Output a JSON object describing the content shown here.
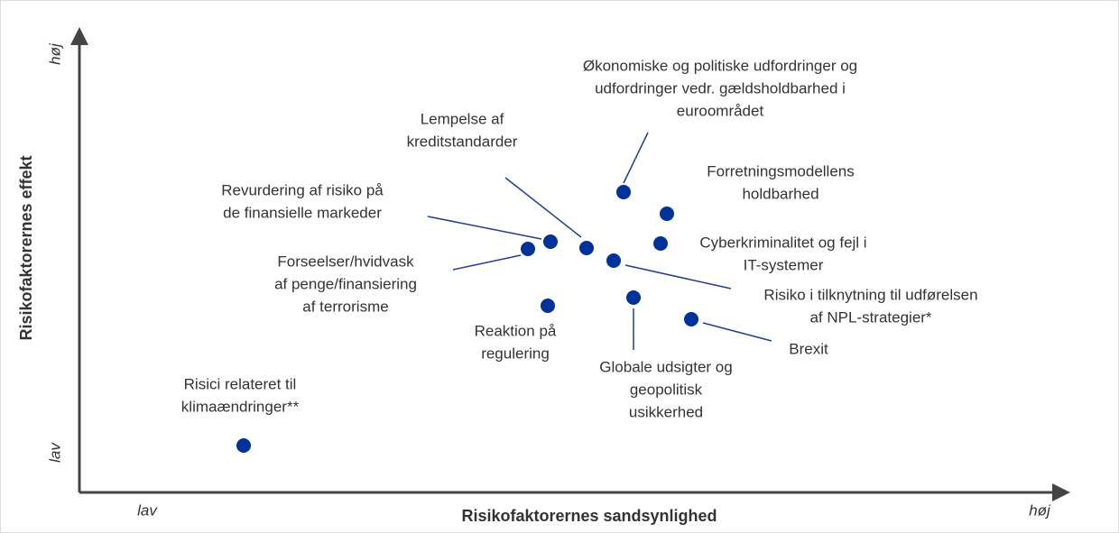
{
  "axes": {
    "y_title": "Risikofaktorernes effekt",
    "x_title": "Risikofaktorernes sandsynlighed",
    "y_high": "høj",
    "y_low": "lav",
    "x_low": "lav",
    "x_high": "høj"
  },
  "risks": [
    {
      "lines": [
        "Økonomiske og politiske udfordringer og",
        "udfordringer vedr. gældsholdbarhed i",
        "euroområdet"
      ]
    },
    {
      "lines": [
        "Lempelse af",
        "kreditstandarder"
      ]
    },
    {
      "lines": [
        "Revurdering af risiko på",
        "de finansielle markeder"
      ]
    },
    {
      "lines": [
        "Forseelser/hvidvask",
        "af penge/finansiering",
        "af terrorisme"
      ]
    },
    {
      "lines": [
        "Forretningsmodellens",
        "holdbarhed"
      ]
    },
    {
      "lines": [
        "Cyberkriminalitet og fejl i",
        "IT-systemer"
      ]
    },
    {
      "lines": [
        "Risiko i tilknytning til udførelsen",
        "af NPL-strategier*"
      ]
    },
    {
      "lines": [
        "Reaktion på",
        "regulering"
      ]
    },
    {
      "lines": [
        "Globale udsigter og",
        "geopolitisk",
        "usikkerhed"
      ]
    },
    {
      "lines": [
        "Brexit"
      ]
    },
    {
      "lines": [
        "Risici relateret til",
        "klimaændringer**"
      ]
    }
  ]
}
